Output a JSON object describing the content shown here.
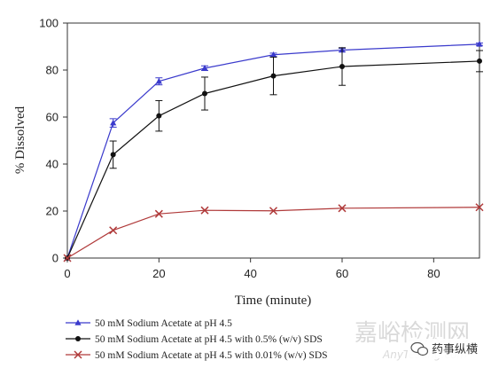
{
  "chart_data": {
    "type": "line",
    "xlabel": "Time (minute)",
    "ylabel": "% Dissolved",
    "xlim": [
      0,
      90
    ],
    "ylim": [
      0,
      100
    ],
    "xticks": [
      0,
      20,
      40,
      60,
      80
    ],
    "yticks": [
      0,
      20,
      40,
      60,
      80,
      100
    ],
    "grid": false,
    "legend_position": "bottom",
    "x": [
      0,
      10,
      20,
      30,
      45,
      60,
      90
    ],
    "series": [
      {
        "name": "50 mM Sodium Acetate at pH 4.5",
        "color": "#3a3acc",
        "marker": "triangle",
        "values": [
          0,
          57.5,
          75.2,
          80.8,
          86.5,
          88.5,
          91.0
        ],
        "error": [
          0,
          1.8,
          1.5,
          1.0,
          0.7,
          0.7,
          0.5
        ]
      },
      {
        "name": "50 mM Sodium Acetate at pH 4.5 with 0.5% (w/v) SDS",
        "color": "#111111",
        "marker": "circle",
        "values": [
          0,
          44.0,
          60.5,
          70.0,
          77.5,
          81.5,
          83.8
        ],
        "error": [
          0,
          5.8,
          6.5,
          7.0,
          8.0,
          8.0,
          4.5
        ]
      },
      {
        "name": "50 mM Sodium Acetate at pH 4.5 with 0.01% (w/v) SDS",
        "color": "#b03a3a",
        "marker": "x",
        "values": [
          0,
          11.8,
          18.8,
          20.3,
          20.1,
          21.2,
          21.6
        ],
        "error": [
          0,
          0,
          0,
          0,
          0,
          0,
          0
        ]
      }
    ]
  },
  "watermark": {
    "main": "嘉峪检测网",
    "sub": "AnyTesting.com",
    "badge": "药事纵横",
    "badge_icon": "wechat-icon"
  }
}
